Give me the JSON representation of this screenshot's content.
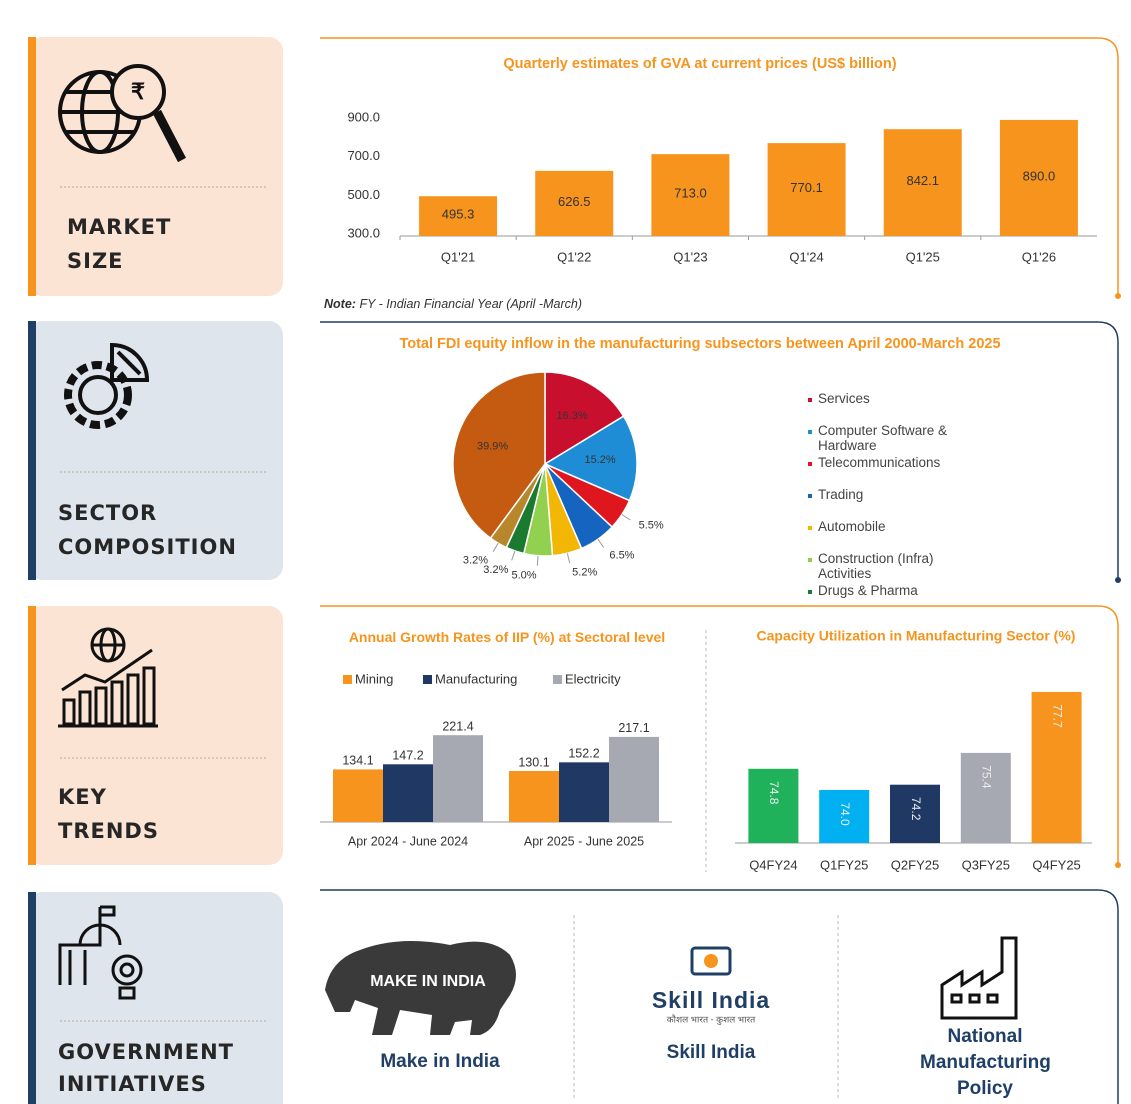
{
  "sections": [
    {
      "label": [
        "MARKET",
        "SIZE"
      ]
    },
    {
      "label": [
        "SECTOR",
        "COMPOSITION"
      ]
    },
    {
      "label": [
        "KEY",
        "TRENDS"
      ]
    },
    {
      "label": [
        "GOVERNMENT",
        "INITIATIVES"
      ]
    }
  ],
  "note_label": "Note:",
  "note": "FY - Indian Financial Year (April -March)",
  "chart_data": [
    {
      "type": "bar",
      "title": "Quarterly estimates of GVA at current prices (US$ billion)",
      "categories": [
        "Q1'21",
        "Q1'22",
        "Q1'23",
        "Q1'24",
        "Q1'25",
        "Q1'26"
      ],
      "values": [
        495.3,
        626.5,
        713.0,
        770.1,
        842.1,
        890.0
      ],
      "value_labels": [
        "495.3",
        "626.5",
        "713.0",
        "770.1",
        "842.1",
        "890.0"
      ],
      "color": "#f7941d",
      "ylim": [
        300,
        900
      ],
      "yticks": [
        {
          "value": 300,
          "label": "300.0"
        },
        {
          "value": 500,
          "label": "500.0"
        },
        {
          "value": 700,
          "label": "700.0"
        },
        {
          "value": 900,
          "label": "900.0"
        }
      ]
    },
    {
      "type": "pie",
      "title": "Total FDI equity inflow in the manufacturing subsectors between April 2000-March 2025",
      "categories": [
        "Services",
        "Computer Software & Hardware",
        "Telecommunications",
        "Trading",
        "Automobile",
        "Construction (Infra) Activities",
        "Drugs & Pharma",
        null,
        null
      ],
      "values": [
        16.3,
        15.2,
        5.5,
        6.5,
        5.2,
        5.0,
        3.2,
        3.2,
        39.9
      ],
      "value_labels": [
        "16.3%",
        "15.2%",
        "5.5%",
        "6.5%",
        "5.2%",
        "5.0%",
        "3.2%",
        "3.2%",
        "39.9%"
      ],
      "colors": [
        "#c8102e",
        "#1f8dd6",
        "#e0161e",
        "#1565c0",
        "#f2b705",
        "#92d050",
        "#1a7a30",
        "#b8862b",
        "#c55a11"
      ]
    },
    {
      "type": "grouped_bar",
      "title": "Annual Growth Rates of IIP (%) at Sectoral level",
      "categories": [
        "Apr 2024 - June 2024",
        "Apr 2025 - June 2025"
      ],
      "series": [
        {
          "name": "Mining",
          "color": "#f7941d",
          "values": [
            134.1,
            130.1
          ]
        },
        {
          "name": "Manufacturing",
          "color": "#1f3864",
          "values": [
            147.2,
            152.2
          ]
        },
        {
          "name": "Electricity",
          "color": "#a6a8b2",
          "values": [
            221.4,
            217.1
          ]
        }
      ],
      "ylim": [
        0,
        250
      ]
    },
    {
      "type": "bar",
      "title": "Capacity Utilization in Manufacturing Sector (%)",
      "categories": [
        "Q4FY24",
        "Q1FY25",
        "Q2FY25",
        "Q3FY25",
        "Q4FY25"
      ],
      "values": [
        74.8,
        74.0,
        74.2,
        75.4,
        77.7
      ],
      "value_labels": [
        "74.8",
        "74.0",
        "74.2",
        "75.4",
        "77.7"
      ],
      "colors": [
        "#1fb25a",
        "#00b0f0",
        "#1f3864",
        "#a6a8b2",
        "#f7941d"
      ],
      "ylim": [
        72,
        78
      ]
    }
  ],
  "initiatives": [
    {
      "name": "Make in India",
      "logo_text": "MAKE IN INDIA"
    },
    {
      "name": "Skill India",
      "logo_text": "Skill India",
      "logo_tagline": "कौशल भारत - कुशल भारत"
    },
    {
      "name": "National Manufacturing Policy"
    }
  ]
}
